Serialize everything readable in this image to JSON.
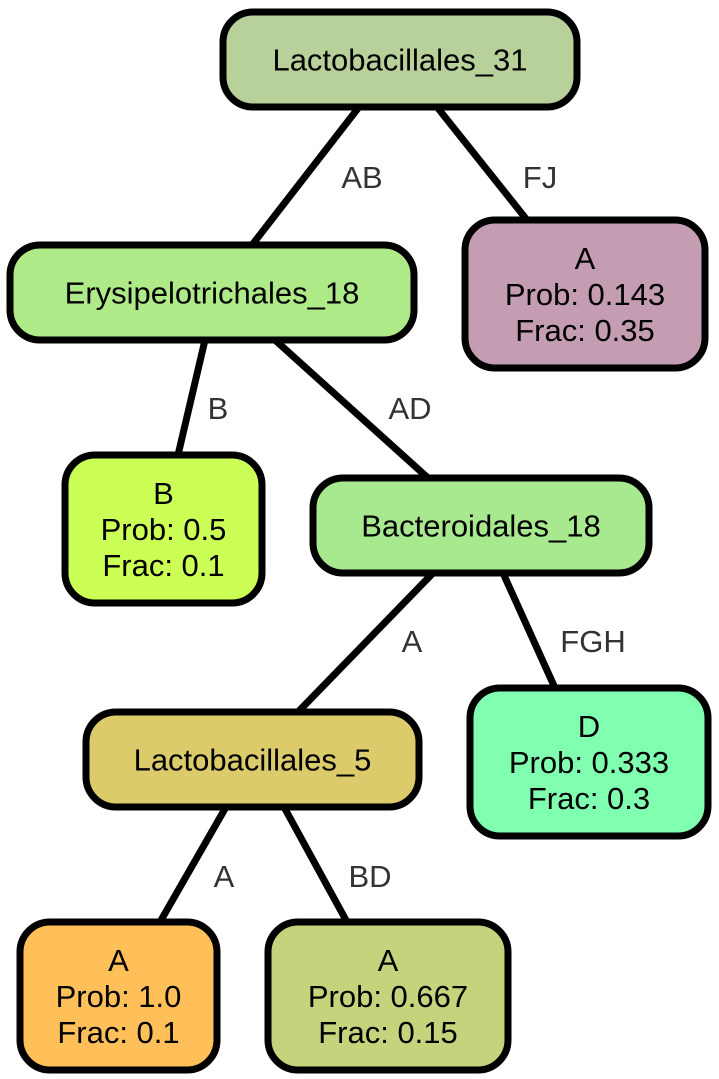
{
  "nodes": {
    "lactobacillales_31": {
      "lines": [
        "Lactobacillales_31"
      ],
      "color": "#b8d09a"
    },
    "erysipelotrichales_18": {
      "lines": [
        "Erysipelotrichales_18"
      ],
      "color": "#aeea88"
    },
    "leaf_a_fj": {
      "lines": [
        "A",
        "Prob: 0.143",
        "Frac: 0.35"
      ],
      "color": "#c49db3"
    },
    "leaf_b": {
      "lines": [
        "B",
        "Prob: 0.5",
        "Frac: 0.1"
      ],
      "color": "#ccff55"
    },
    "bacteroidales_18": {
      "lines": [
        "Bacteroidales_18"
      ],
      "color": "#a8e88e"
    },
    "lactobacillales_5": {
      "lines": [
        "Lactobacillales_5"
      ],
      "color": "#dccb6b"
    },
    "leaf_d": {
      "lines": [
        "D",
        "Prob: 0.333",
        "Frac: 0.3"
      ],
      "color": "#80ffb1"
    },
    "leaf_a_a": {
      "lines": [
        "A",
        "Prob: 1.0",
        "Frac: 0.1"
      ],
      "color": "#ffc05a"
    },
    "leaf_a_bd": {
      "lines": [
        "A",
        "Prob: 0.667",
        "Frac: 0.15"
      ],
      "color": "#c4d37c"
    }
  },
  "edges": [
    {
      "from": "lactobacillales_31",
      "to": "erysipelotrichales_18",
      "label": "AB"
    },
    {
      "from": "lactobacillales_31",
      "to": "leaf_a_fj",
      "label": "FJ"
    },
    {
      "from": "erysipelotrichales_18",
      "to": "leaf_b",
      "label": "B"
    },
    {
      "from": "erysipelotrichales_18",
      "to": "bacteroidales_18",
      "label": "AD"
    },
    {
      "from": "bacteroidales_18",
      "to": "lactobacillales_5",
      "label": "A"
    },
    {
      "from": "bacteroidales_18",
      "to": "leaf_d",
      "label": "FGH"
    },
    {
      "from": "lactobacillales_5",
      "to": "leaf_a_a",
      "label": "A"
    },
    {
      "from": "lactobacillales_5",
      "to": "leaf_a_bd",
      "label": "BD"
    }
  ]
}
